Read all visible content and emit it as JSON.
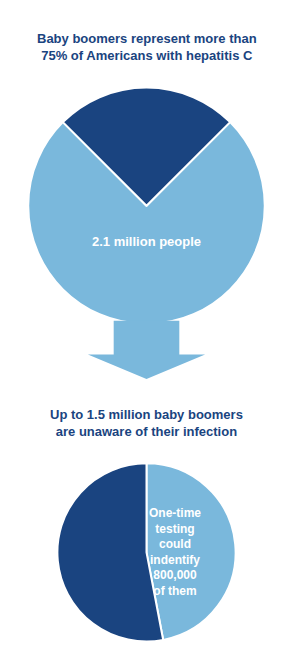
{
  "chart_data": [
    {
      "type": "pie",
      "title": "Baby boomers represent more than\n75% of Americans with hepatitis C",
      "values": [
        75,
        25
      ],
      "colors": [
        "#7ab8dc",
        "#1a4480"
      ],
      "annotations": [
        "2.1 million people"
      ]
    },
    {
      "type": "pie",
      "title": "Up to 1.5 million baby boomers\nare unaware of their infection",
      "values": [
        47,
        53
      ],
      "colors": [
        "#7ab8dc",
        "#1a4480"
      ],
      "annotations": [
        "One-time\ntesting\ncould\nindentify\n800,000\nof them"
      ]
    }
  ]
}
